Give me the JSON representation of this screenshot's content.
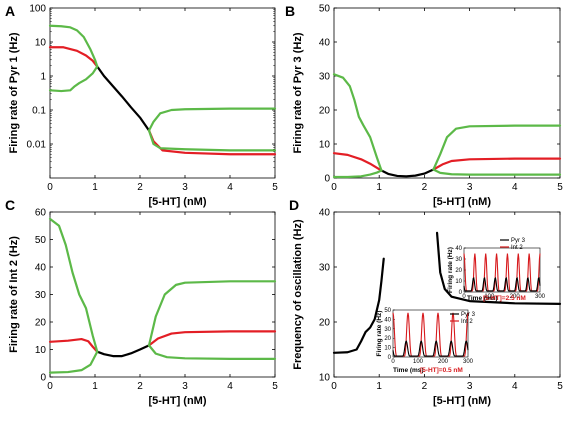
{
  "colors": {
    "black": "#000000",
    "red": "#e31e25",
    "green": "#5cb948",
    "inset_red": "#d7191c"
  },
  "chart_data": [
    {
      "panel": "A",
      "type": "line",
      "ylabel": "Firing rate of Pyr 1 (Hz)",
      "xlabel": "[5-HT]  (nM)",
      "yscale": "log",
      "xlim": [
        0,
        5
      ],
      "ylim": [
        0.001,
        100
      ],
      "xticks": [
        "0",
        "1",
        "2",
        "3",
        "4",
        "5"
      ],
      "yticks": [
        {
          "v": 100,
          "label": "100"
        },
        {
          "v": 10,
          "label": "10"
        },
        {
          "v": 1,
          "label": "1"
        },
        {
          "v": 0.1,
          "label": "0.1"
        },
        {
          "v": 0.01,
          "label": "0.01"
        }
      ],
      "series": [
        {
          "color": "black",
          "points": [
            [
              1.05,
              1.9
            ],
            [
              1.2,
              1.0
            ],
            [
              1.4,
              0.5
            ],
            [
              1.6,
              0.25
            ],
            [
              1.8,
              0.12
            ],
            [
              2.0,
              0.06
            ],
            [
              2.2,
              0.025
            ]
          ]
        },
        {
          "color": "red",
          "points": [
            [
              0,
              7.0
            ],
            [
              0.3,
              7.0
            ],
            [
              0.6,
              5.5
            ],
            [
              0.8,
              4.0
            ],
            [
              0.95,
              2.8
            ],
            [
              1.05,
              1.9
            ]
          ]
        },
        {
          "color": "red",
          "points": [
            [
              2.2,
              0.025
            ],
            [
              2.3,
              0.012
            ],
            [
              2.5,
              0.0065
            ],
            [
              3,
              0.0055
            ],
            [
              4,
              0.005
            ],
            [
              5,
              0.005
            ]
          ]
        },
        {
          "color": "green",
          "points": [
            [
              0,
              30
            ],
            [
              0.25,
              29
            ],
            [
              0.45,
              27
            ],
            [
              0.6,
              22
            ],
            [
              0.75,
              14
            ],
            [
              0.9,
              6
            ],
            [
              1.0,
              3
            ],
            [
              1.05,
              1.9
            ]
          ]
        },
        {
          "color": "green",
          "points": [
            [
              0,
              0.38
            ],
            [
              0.25,
              0.36
            ],
            [
              0.45,
              0.38
            ],
            [
              0.55,
              0.5
            ],
            [
              0.65,
              0.62
            ],
            [
              0.8,
              0.8
            ],
            [
              0.95,
              1.2
            ],
            [
              1.05,
              1.9
            ]
          ]
        },
        {
          "color": "green",
          "points": [
            [
              2.2,
              0.025
            ],
            [
              2.3,
              0.045
            ],
            [
              2.45,
              0.08
            ],
            [
              2.7,
              0.1
            ],
            [
              3,
              0.105
            ],
            [
              4,
              0.11
            ],
            [
              5,
              0.11
            ]
          ]
        },
        {
          "color": "green",
          "points": [
            [
              2.2,
              0.025
            ],
            [
              2.3,
              0.01
            ],
            [
              2.45,
              0.0075
            ],
            [
              3,
              0.007
            ],
            [
              4,
              0.0065
            ],
            [
              5,
              0.0065
            ]
          ]
        }
      ]
    },
    {
      "panel": "B",
      "type": "line",
      "ylabel": "Firing rate of Pyr 3  (Hz)",
      "xlabel": "[5-HT]  (nM)",
      "xlim": [
        0,
        5
      ],
      "ylim": [
        0,
        50
      ],
      "xticks": [
        "0",
        "1",
        "2",
        "3",
        "4",
        "5"
      ],
      "yticks": [
        {
          "v": 0,
          "label": "0"
        },
        {
          "v": 10,
          "label": "10"
        },
        {
          "v": 20,
          "label": "20"
        },
        {
          "v": 30,
          "label": "30"
        },
        {
          "v": 40,
          "label": "40"
        },
        {
          "v": 50,
          "label": "50"
        }
      ],
      "series": [
        {
          "color": "black",
          "points": [
            [
              1.05,
              2.2
            ],
            [
              1.2,
              1.2
            ],
            [
              1.4,
              0.6
            ],
            [
              1.6,
              0.5
            ],
            [
              1.8,
              0.7
            ],
            [
              2.0,
              1.3
            ],
            [
              2.2,
              2.5
            ]
          ]
        },
        {
          "color": "red",
          "points": [
            [
              0,
              7.3
            ],
            [
              0.3,
              6.8
            ],
            [
              0.6,
              5.5
            ],
            [
              0.8,
              4.2
            ],
            [
              0.95,
              3.0
            ],
            [
              1.05,
              2.2
            ]
          ]
        },
        {
          "color": "red",
          "points": [
            [
              2.2,
              2.5
            ],
            [
              2.4,
              4.0
            ],
            [
              2.6,
              5.0
            ],
            [
              3,
              5.5
            ],
            [
              4,
              5.7
            ],
            [
              5,
              5.7
            ]
          ]
        },
        {
          "color": "green",
          "points": [
            [
              0,
              30.5
            ],
            [
              0.2,
              29.5
            ],
            [
              0.35,
              27
            ],
            [
              0.45,
              23
            ],
            [
              0.55,
              18
            ],
            [
              0.65,
              15.5
            ],
            [
              0.8,
              12
            ],
            [
              0.95,
              6
            ],
            [
              1.05,
              2.2
            ]
          ]
        },
        {
          "color": "green",
          "points": [
            [
              0,
              0.3
            ],
            [
              0.3,
              0.3
            ],
            [
              0.6,
              0.5
            ],
            [
              0.8,
              1.0
            ],
            [
              0.95,
              1.6
            ],
            [
              1.05,
              2.2
            ]
          ]
        },
        {
          "color": "green",
          "points": [
            [
              2.2,
              2.5
            ],
            [
              2.35,
              7
            ],
            [
              2.5,
              12
            ],
            [
              2.7,
              14.5
            ],
            [
              3,
              15.2
            ],
            [
              4,
              15.4
            ],
            [
              5,
              15.4
            ]
          ]
        },
        {
          "color": "green",
          "points": [
            [
              2.2,
              2.5
            ],
            [
              2.35,
              1.5
            ],
            [
              2.6,
              1.1
            ],
            [
              3,
              1.0
            ],
            [
              4,
              1.0
            ],
            [
              5,
              1.0
            ]
          ]
        }
      ]
    },
    {
      "panel": "C",
      "type": "line",
      "ylabel": "Firing rate of Int 2  (Hz)",
      "xlabel": "[5-HT]  (nM)",
      "xlim": [
        0,
        5
      ],
      "ylim": [
        0,
        60
      ],
      "xticks": [
        "0",
        "1",
        "2",
        "3",
        "4",
        "5"
      ],
      "yticks": [
        {
          "v": 0,
          "label": "0"
        },
        {
          "v": 10,
          "label": "10"
        },
        {
          "v": 20,
          "label": "20"
        },
        {
          "v": 30,
          "label": "30"
        },
        {
          "v": 40,
          "label": "40"
        },
        {
          "v": 50,
          "label": "50"
        },
        {
          "v": 60,
          "label": "60"
        }
      ],
      "series": [
        {
          "color": "black",
          "points": [
            [
              1.05,
              9.2
            ],
            [
              1.2,
              8.3
            ],
            [
              1.4,
              7.6
            ],
            [
              1.6,
              7.6
            ],
            [
              1.8,
              8.6
            ],
            [
              2.0,
              10.0
            ],
            [
              2.2,
              11.5
            ]
          ]
        },
        {
          "color": "red",
          "points": [
            [
              0,
              12.8
            ],
            [
              0.4,
              13.2
            ],
            [
              0.7,
              13.8
            ],
            [
              0.85,
              13.0
            ],
            [
              0.95,
              11.0
            ],
            [
              1.05,
              9.2
            ]
          ]
        },
        {
          "color": "red",
          "points": [
            [
              2.2,
              11.5
            ],
            [
              2.4,
              14
            ],
            [
              2.7,
              15.8
            ],
            [
              3,
              16.3
            ],
            [
              4,
              16.6
            ],
            [
              5,
              16.6
            ]
          ]
        },
        {
          "color": "green",
          "points": [
            [
              0,
              57.5
            ],
            [
              0.2,
              55
            ],
            [
              0.35,
              48
            ],
            [
              0.5,
              38
            ],
            [
              0.65,
              30
            ],
            [
              0.8,
              25
            ],
            [
              0.95,
              15
            ],
            [
              1.05,
              9.2
            ]
          ]
        },
        {
          "color": "green",
          "points": [
            [
              0,
              1.6
            ],
            [
              0.4,
              1.8
            ],
            [
              0.7,
              2.5
            ],
            [
              0.9,
              4.5
            ],
            [
              1.05,
              9.2
            ]
          ]
        },
        {
          "color": "green",
          "points": [
            [
              2.2,
              11.5
            ],
            [
              2.35,
              22
            ],
            [
              2.55,
              30
            ],
            [
              2.8,
              33.5
            ],
            [
              3,
              34.3
            ],
            [
              4,
              34.8
            ],
            [
              5,
              34.8
            ]
          ]
        },
        {
          "color": "green",
          "points": [
            [
              2.2,
              11.5
            ],
            [
              2.35,
              8.5
            ],
            [
              2.6,
              7.2
            ],
            [
              3,
              6.8
            ],
            [
              4,
              6.6
            ],
            [
              5,
              6.6
            ]
          ]
        }
      ]
    },
    {
      "panel": "D",
      "type": "line",
      "ylabel": "Frequency of oscillation (Hz)",
      "xlabel": "[5-HT] (nM)",
      "xlim": [
        0,
        5
      ],
      "ylim": [
        10,
        40
      ],
      "xticks": [
        "0",
        "1",
        "2",
        "3",
        "4",
        "5"
      ],
      "yticks": [
        {
          "v": 10,
          "label": "10"
        },
        {
          "v": 20,
          "label": "20"
        },
        {
          "v": 30,
          "label": "30"
        },
        {
          "v": 40,
          "label": "40"
        }
      ],
      "series": [
        {
          "color": "black",
          "points": [
            [
              0,
              14.4
            ],
            [
              0.3,
              14.5
            ],
            [
              0.5,
              15.0
            ],
            [
              0.6,
              16.5
            ],
            [
              0.7,
              18.2
            ],
            [
              0.8,
              19.0
            ],
            [
              0.9,
              20.5
            ],
            [
              1.0,
              24.0
            ],
            [
              1.05,
              27.5
            ],
            [
              1.1,
              31.5
            ]
          ]
        },
        {
          "color": "black",
          "points": [
            [
              2.28,
              36.2
            ],
            [
              2.35,
              29.0
            ],
            [
              2.45,
              26.0
            ],
            [
              2.6,
              24.6
            ],
            [
              3.0,
              23.8
            ],
            [
              4.0,
              23.4
            ],
            [
              5.0,
              23.3
            ]
          ]
        }
      ],
      "insets": [
        {
          "ylabel": "Firing rate (Hz)",
          "xlabel": "Time (ms)",
          "annotation": "[5-HT]=2.5 nM",
          "xticks": [
            "0",
            "100",
            "200",
            "300"
          ],
          "yticks": [
            "0",
            "10",
            "20",
            "30",
            "40"
          ],
          "legend": [
            "Pyr 3",
            "Int 2"
          ],
          "cycles": 7,
          "red_peak": 35,
          "black_peak": 13
        },
        {
          "ylabel": "Firing rate (Hz)",
          "xlabel": "Time (ms)",
          "annotation": "[5-HT]=0.5 nM",
          "xticks": [
            "0",
            "100",
            "200",
            "300"
          ],
          "yticks": [
            "0",
            "10",
            "20",
            "30",
            "40",
            "50"
          ],
          "legend": [
            "Pyr 3",
            "Int 2"
          ],
          "cycles": 5,
          "red_peak": 47,
          "black_peak": 17
        }
      ]
    }
  ]
}
